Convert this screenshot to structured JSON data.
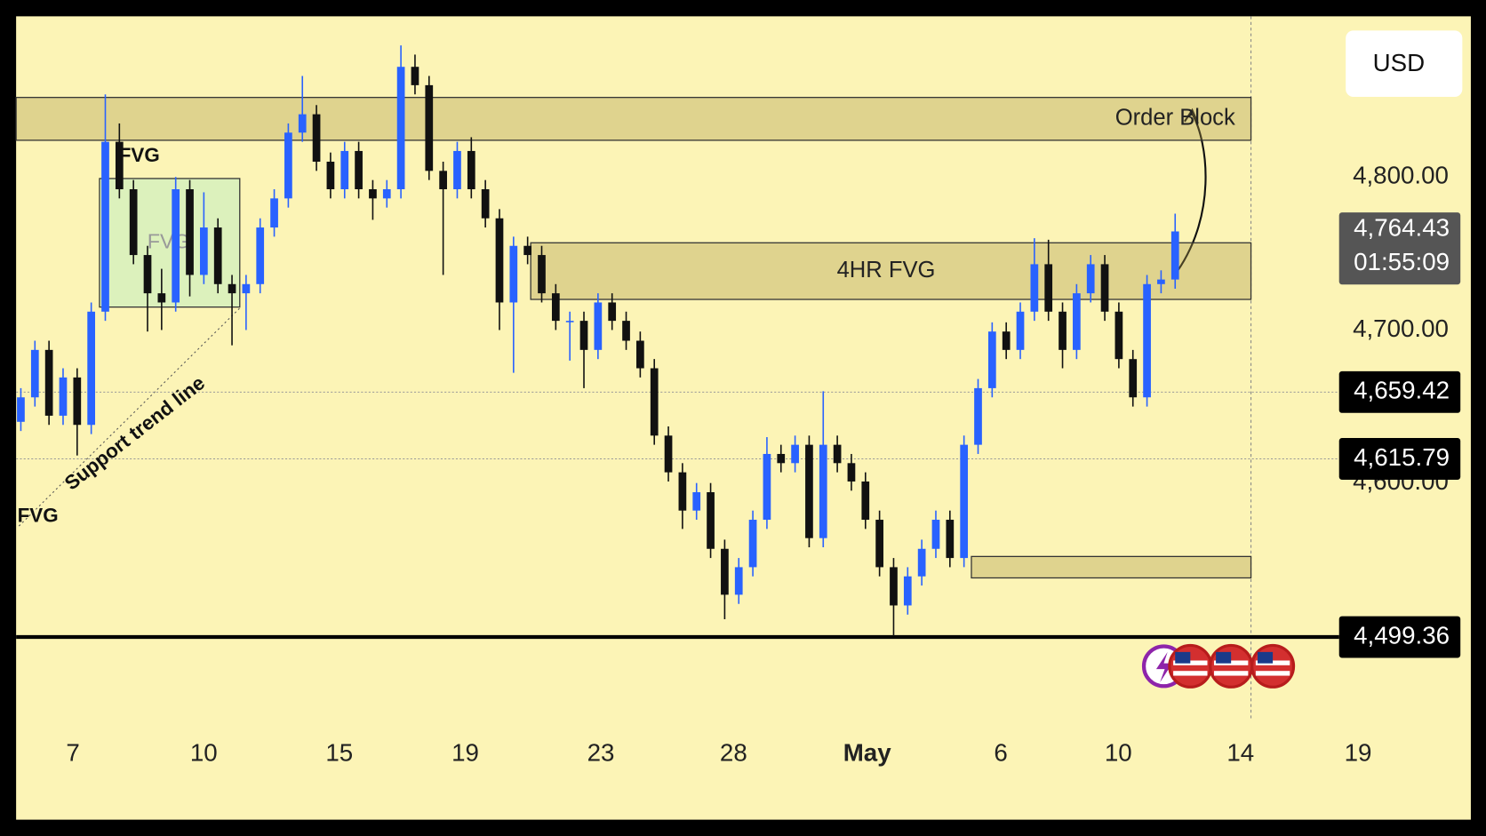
{
  "chart_data": {
    "type": "candlestick",
    "currency": "USD",
    "categories": [
      "7",
      "10",
      "15",
      "19",
      "23",
      "28",
      "May",
      "6",
      "10",
      "14",
      "19"
    ],
    "open": [
      4640,
      4656,
      4687,
      4644,
      4669,
      4638,
      4712,
      4823,
      4792,
      4749,
      4724,
      4718,
      4792,
      4736,
      4767,
      4730,
      4724,
      4730,
      4767,
      4786,
      4829,
      4841,
      4810,
      4792,
      4817,
      4792,
      4786,
      4792,
      4872,
      4860,
      4804,
      4792,
      4817,
      4792,
      4773,
      4718,
      4755,
      4749,
      4724,
      4706,
      4706,
      4687,
      4718,
      4706,
      4693,
      4675,
      4631,
      4607,
      4582,
      4594,
      4557,
      4527,
      4545,
      4576,
      4619,
      4613,
      4625,
      4564,
      4625,
      4613,
      4601,
      4576,
      4545,
      4520,
      4539,
      4557,
      4576,
      4551,
      4625,
      4662,
      4699,
      4687,
      4712,
      4743,
      4712,
      4687,
      4724,
      4743,
      4712,
      4681,
      4656,
      4730,
      4733
    ],
    "high": [
      4662,
      4693,
      4693,
      4675,
      4675,
      4718,
      4854,
      4835,
      4798,
      4755,
      4740,
      4800,
      4798,
      4790,
      4773,
      4736,
      4736,
      4773,
      4792,
      4835,
      4866,
      4847,
      4816,
      4823,
      4823,
      4798,
      4798,
      4886,
      4880,
      4866,
      4810,
      4823,
      4826,
      4798,
      4779,
      4761,
      4761,
      4755,
      4730,
      4712,
      4712,
      4724,
      4724,
      4712,
      4699,
      4681,
      4637,
      4613,
      4600,
      4600,
      4563,
      4551,
      4582,
      4630,
      4625,
      4631,
      4631,
      4660,
      4631,
      4619,
      4607,
      4582,
      4551,
      4545,
      4563,
      4582,
      4582,
      4631,
      4668,
      4705,
      4705,
      4718,
      4760,
      4759,
      4718,
      4730,
      4749,
      4749,
      4718,
      4687,
      4736,
      4739,
      4776
    ],
    "low": [
      4634,
      4650,
      4638,
      4638,
      4618,
      4632,
      4706,
      4786,
      4743,
      4699,
      4700,
      4712,
      4722,
      4730,
      4724,
      4690,
      4700,
      4724,
      4761,
      4780,
      4823,
      4804,
      4786,
      4786,
      4786,
      4772,
      4780,
      4786,
      4854,
      4798,
      4736,
      4786,
      4786,
      4767,
      4700,
      4672,
      4743,
      4718,
      4700,
      4680,
      4662,
      4681,
      4700,
      4687,
      4669,
      4625,
      4601,
      4570,
      4576,
      4551,
      4511,
      4521,
      4539,
      4570,
      4607,
      4607,
      4558,
      4558,
      4607,
      4595,
      4570,
      4539,
      4500,
      4514,
      4533,
      4551,
      4545,
      4545,
      4619,
      4656,
      4681,
      4681,
      4706,
      4706,
      4675,
      4681,
      4718,
      4706,
      4675,
      4650,
      4650,
      4724,
      4727
    ],
    "close": [
      4656,
      4687,
      4644,
      4669,
      4638,
      4712,
      4823,
      4792,
      4749,
      4724,
      4718,
      4792,
      4736,
      4767,
      4730,
      4724,
      4730,
      4767,
      4786,
      4829,
      4841,
      4810,
      4792,
      4817,
      4792,
      4786,
      4792,
      4872,
      4860,
      4804,
      4792,
      4817,
      4792,
      4773,
      4718,
      4755,
      4749,
      4724,
      4706,
      4706,
      4687,
      4718,
      4706,
      4693,
      4675,
      4631,
      4607,
      4582,
      4594,
      4557,
      4527,
      4545,
      4576,
      4619,
      4613,
      4625,
      4564,
      4625,
      4613,
      4601,
      4576,
      4545,
      4520,
      4539,
      4557,
      4576,
      4551,
      4625,
      4662,
      4699,
      4687,
      4712,
      4743,
      4712,
      4687,
      4724,
      4743,
      4712,
      4681,
      4656,
      4730,
      4733,
      4764.43
    ],
    "up_color": "#2962ff",
    "down_color": "#111111",
    "ylim": [
      4445,
      4905
    ],
    "yticks": [
      {
        "value": 4600,
        "label": "4,600.00"
      },
      {
        "value": 4700,
        "label": "4,700.00"
      },
      {
        "value": 4800,
        "label": "4,800.00"
      }
    ],
    "zones": [
      {
        "label": "Order Block",
        "top": 4852,
        "bottom": 4824
      },
      {
        "label": "4HR FVG",
        "top": 4757,
        "bottom": 4720
      },
      {
        "top": 4552,
        "bottom": 4538
      },
      {
        "label": "FVG",
        "top": 4799,
        "bottom": 4715
      }
    ],
    "annotations": [
      "FVG",
      "FVG",
      "Support trend line"
    ],
    "price_lines": [
      {
        "value": 4659.42,
        "label": "4,659.42"
      },
      {
        "value": 4615.79,
        "label": "4,615.79"
      },
      {
        "value": 4499.36,
        "label": "4,499.36"
      }
    ],
    "last_price": {
      "value": 4764.43,
      "label": "4,764.43"
    },
    "countdown": "01:55:09"
  }
}
